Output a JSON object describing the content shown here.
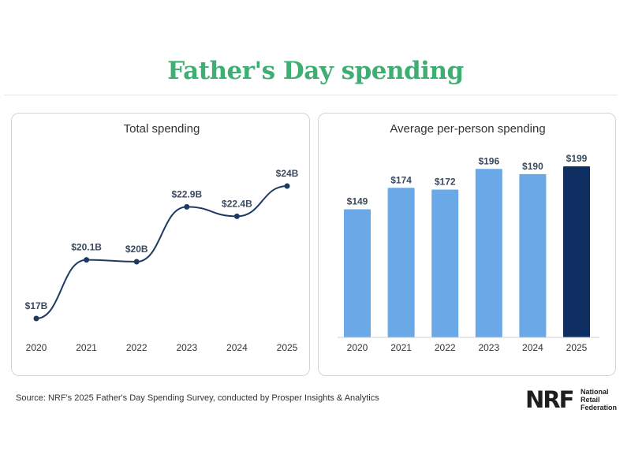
{
  "page": {
    "title": "Father's Day spending",
    "source": "Source: NRF's 2025 Father's Day Spending Survey, conducted by Prosper Insights & Analytics",
    "logo": {
      "mark": "NRF",
      "lines": [
        "National",
        "Retail",
        "Federation"
      ]
    }
  },
  "colors": {
    "title": "#3fae73",
    "line": "#1f3a60",
    "bar": "#6aa8e8",
    "bar_highlight": "#0f2f63",
    "label": "#3a4a5e"
  },
  "chart_data": [
    {
      "type": "line",
      "title": "Total spending",
      "categories": [
        "2020",
        "2021",
        "2022",
        "2023",
        "2024",
        "2025"
      ],
      "values": [
        17,
        20.1,
        20,
        22.9,
        22.4,
        24
      ],
      "data_labels": [
        "$17B",
        "$20.1B",
        "$20B",
        "$22.9B",
        "$22.4B",
        "$24B"
      ],
      "unit": "billion USD",
      "grid": false,
      "legend": "none"
    },
    {
      "type": "bar",
      "title": "Average per-person spending",
      "categories": [
        "2020",
        "2021",
        "2022",
        "2023",
        "2024",
        "2025"
      ],
      "values": [
        149,
        174,
        172,
        196,
        190,
        199
      ],
      "data_labels": [
        "$149",
        "$174",
        "$172",
        "$196",
        "$190",
        "$199"
      ],
      "ylim": [
        0,
        199
      ],
      "highlight_category": "2025",
      "grid": false,
      "legend": "none"
    }
  ]
}
